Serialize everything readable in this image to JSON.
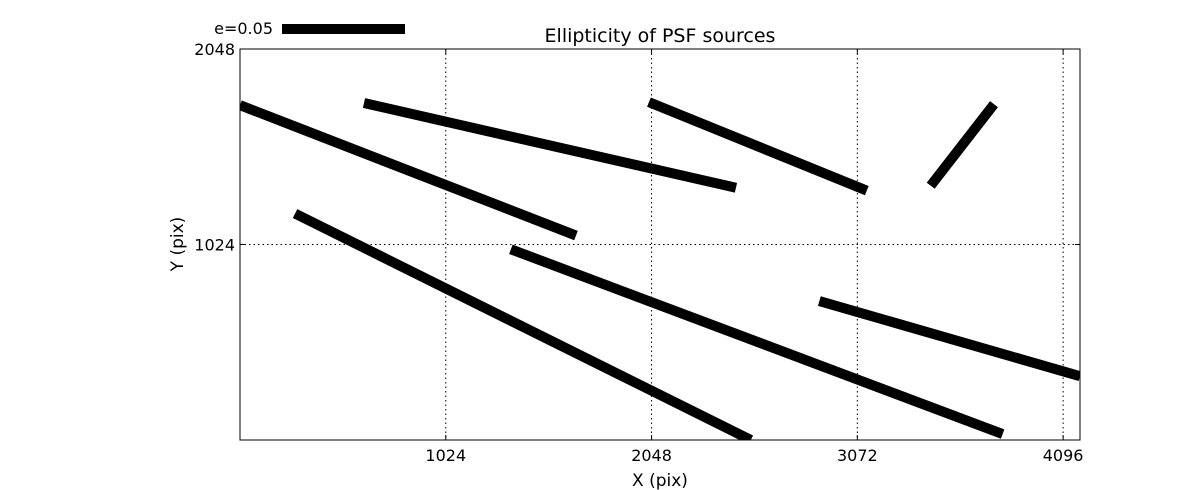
{
  "chart_data": {
    "type": "scatter",
    "subtype": "whisker-plot",
    "title": "Ellipticity of PSF sources",
    "xlabel": "X (pix)",
    "ylabel": "Y (pix)",
    "xlim": [
      0,
      4180
    ],
    "ylim": [
      0,
      2048
    ],
    "xticks": [
      1024,
      2048,
      3072,
      4096
    ],
    "xtick_labels": [
      "1024",
      "2048",
      "3072",
      "4096"
    ],
    "yticks": [
      1024,
      2048
    ],
    "ytick_labels": [
      "1024",
      "2048"
    ],
    "grid": true,
    "grid_style": "dotted",
    "line_color": "#000000",
    "legend": {
      "label": "e=0.05",
      "reference_e": 0.05,
      "placement": "top-left"
    },
    "whiskers": [
      {
        "x1": 0,
        "y1": 1754,
        "x2": 1672,
        "y2": 1071
      },
      {
        "x1": 617,
        "y1": 1765,
        "x2": 2468,
        "y2": 1321
      },
      {
        "x1": 2035,
        "y1": 1770,
        "x2": 3119,
        "y2": 1306
      },
      {
        "x1": 3437,
        "y1": 1332,
        "x2": 3752,
        "y2": 1759
      },
      {
        "x1": 274,
        "y1": 1186,
        "x2": 2542,
        "y2": 0
      },
      {
        "x1": 1348,
        "y1": 999,
        "x2": 3795,
        "y2": 31
      },
      {
        "x1": 2883,
        "y1": 728,
        "x2": 4180,
        "y2": 334
      }
    ]
  }
}
